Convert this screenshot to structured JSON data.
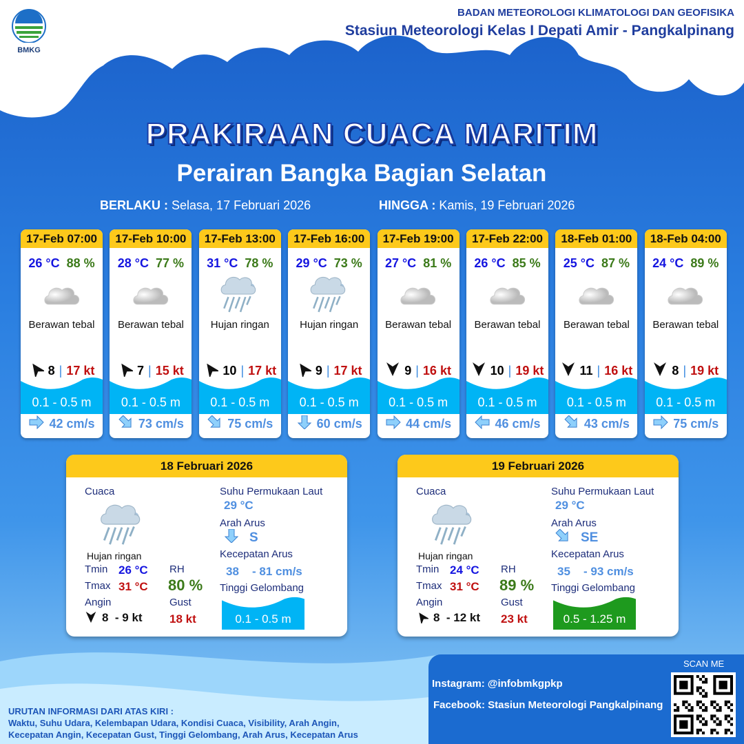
{
  "header": {
    "logo_text": "BMKG",
    "org": "BADAN METEOROLOGI KLIMATOLOGI DAN GEOFISIKA",
    "station": "Stasiun Meteorologi Kelas I Depati Amir - Pangkalpinang"
  },
  "title": "PRAKIRAAN CUACA MARITIM",
  "subtitle": "Perairan Bangka Bagian Selatan",
  "validity": {
    "from_label": "BERLAKU :",
    "from": "Selasa, 17 Februari 2026",
    "to_label": "HINGGA :",
    "to": "Kamis, 19 Februari 2026"
  },
  "colors": {
    "header_yellow": "#fdc91b",
    "wave_cyan": "#00b4f5",
    "wave_green": "#1e9a1e",
    "gust_red": "#c01010"
  },
  "forecasts": [
    {
      "time": "17-Feb 07:00",
      "temp": "26 °C",
      "rh": "88 %",
      "icon": "cloud-icon",
      "cond": "Berawan tebal",
      "wind_dir": "ne",
      "wind": "8",
      "gust": "17 kt",
      "wave": "0.1 - 0.5 m",
      "cur_dir": "east",
      "cur": "42 cm/s"
    },
    {
      "time": "17-Feb 10:00",
      "temp": "28 °C",
      "rh": "77 %",
      "icon": "cloud-icon",
      "cond": "Berawan tebal",
      "wind_dir": "ne",
      "wind": "7",
      "gust": "15 kt",
      "wave": "0.1 - 0.5 m",
      "cur_dir": "southeast",
      "cur": "73 cm/s"
    },
    {
      "time": "17-Feb 13:00",
      "temp": "31 °C",
      "rh": "78 %",
      "icon": "rain-icon",
      "cond": "Hujan ringan",
      "wind_dir": "ne",
      "wind": "10",
      "gust": "17 kt",
      "wave": "0.1 - 0.5 m",
      "cur_dir": "southeast",
      "cur": "75 cm/s"
    },
    {
      "time": "17-Feb 16:00",
      "temp": "29 °C",
      "rh": "73 %",
      "icon": "rain-icon",
      "cond": "Hujan ringan",
      "wind_dir": "ne",
      "wind": "9",
      "gust": "17 kt",
      "wave": "0.1 - 0.5 m",
      "cur_dir": "south",
      "cur": "60 cm/s"
    },
    {
      "time": "17-Feb 19:00",
      "temp": "27 °C",
      "rh": "81 %",
      "icon": "cloud-icon",
      "cond": "Berawan tebal",
      "wind_dir": "s",
      "wind": "9",
      "gust": "16 kt",
      "wave": "0.1 - 0.5 m",
      "cur_dir": "east",
      "cur": "44 cm/s"
    },
    {
      "time": "17-Feb 22:00",
      "temp": "26 °C",
      "rh": "85 %",
      "icon": "cloud-icon",
      "cond": "Berawan tebal",
      "wind_dir": "s",
      "wind": "10",
      "gust": "19 kt",
      "wave": "0.1 - 0.5 m",
      "cur_dir": "west",
      "cur": "46 cm/s"
    },
    {
      "time": "18-Feb 01:00",
      "temp": "25 °C",
      "rh": "87 %",
      "icon": "cloud-icon",
      "cond": "Berawan tebal",
      "wind_dir": "s",
      "wind": "11",
      "gust": "16 kt",
      "wave": "0.1 - 0.5 m",
      "cur_dir": "southeast",
      "cur": "43 cm/s"
    },
    {
      "time": "18-Feb 04:00",
      "temp": "24 °C",
      "rh": "89 %",
      "icon": "cloud-icon",
      "cond": "Berawan tebal",
      "wind_dir": "s",
      "wind": "8",
      "gust": "19 kt",
      "wave": "0.1 - 0.5 m",
      "cur_dir": "east",
      "cur": "75 cm/s"
    }
  ],
  "daily": [
    {
      "date": "18 Februari 2026",
      "cuaca_label": "Cuaca",
      "cond": "Hujan ringan",
      "tmin_label": "Tmin",
      "tmin": "26 °C",
      "tmax_label": "Tmax",
      "tmax": "31 °C",
      "rh_label": "RH",
      "rh": "80 %",
      "angin_label": "Angin",
      "wind_dir": "s",
      "angin": "8  - 9 kt",
      "gust_label": "Gust",
      "gust": "18 kt",
      "sst_label": "Suhu Permukaan Laut",
      "sst": "29 °C",
      "arah_label": "Arah Arus",
      "cur_dir": "south",
      "arah": "S",
      "kec_label": "Kecepatan Arus",
      "kec_min": "38",
      "kec_max": "- 81 cm/s",
      "wave_label": "Tinggi Gelombang",
      "wave": "0.1 - 0.5 m",
      "wave_color": "#00b4f5"
    },
    {
      "date": "19 Februari 2026",
      "cuaca_label": "Cuaca",
      "cond": "Hujan ringan",
      "tmin_label": "Tmin",
      "tmin": "24 °C",
      "tmax_label": "Tmax",
      "tmax": "31 °C",
      "rh_label": "RH",
      "rh": "89 %",
      "angin_label": "Angin",
      "wind_dir": "ne",
      "angin": "8  - 12 kt",
      "gust_label": "Gust",
      "gust": "23 kt",
      "sst_label": "Suhu Permukaan Laut",
      "sst": "29 °C",
      "arah_label": "Arah Arus",
      "cur_dir": "southeast",
      "arah": "SE",
      "kec_label": "Kecepatan Arus",
      "kec_min": "35",
      "kec_max": "- 93 cm/s",
      "wave_label": "Tinggi Gelombang",
      "wave": "0.5 - 1.25 m",
      "wave_color": "#1e9a1e"
    }
  ],
  "social": {
    "scan": "SCAN ME",
    "instagram": "Instagram:  @infobmkgpkp",
    "facebook": "Facebook:  Stasiun  Meteorologi  Pangkalpinang"
  },
  "legend": {
    "title": "URUTAN INFORMASI DARI ATAS KIRI :",
    "line1": "Waktu, Suhu Udara, Kelembapan Udara, Kondisi Cuaca, Visibility, Arah Angin,",
    "line2": "Kecepatan Angin, Kecepatan Gust, Tinggi Gelombang, Arah Arus, Kecepatan Arus"
  }
}
